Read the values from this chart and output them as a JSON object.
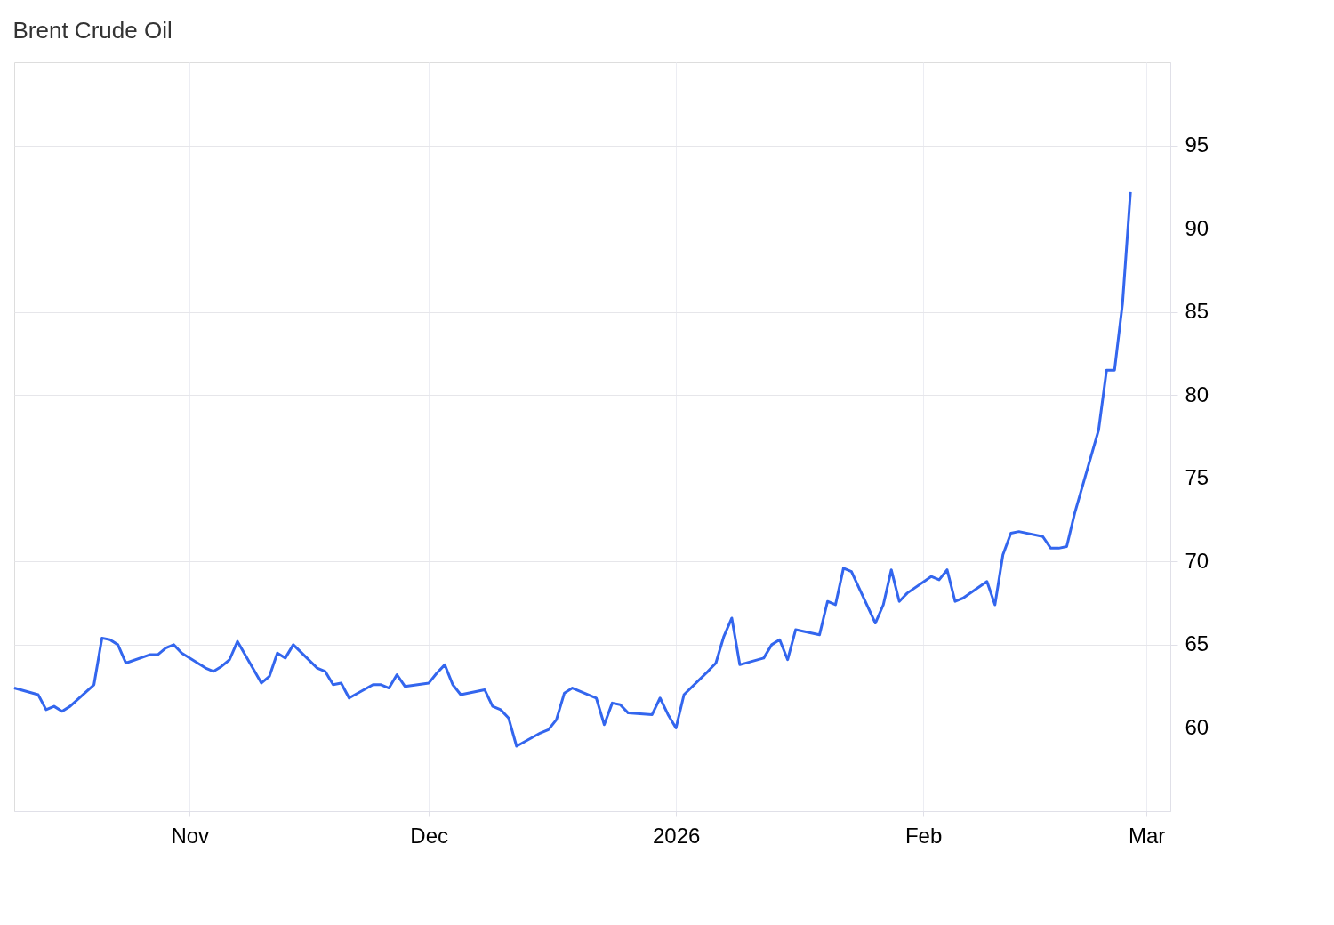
{
  "chart_data": {
    "type": "line",
    "title": "Brent Crude Oil",
    "x": [
      "2025-10-10",
      "2025-10-13",
      "2025-10-14",
      "2025-10-15",
      "2025-10-16",
      "2025-10-17",
      "2025-10-20",
      "2025-10-21",
      "2025-10-22",
      "2025-10-23",
      "2025-10-24",
      "2025-10-27",
      "2025-10-28",
      "2025-10-29",
      "2025-10-30",
      "2025-10-31",
      "2025-11-03",
      "2025-11-04",
      "2025-11-05",
      "2025-11-06",
      "2025-11-07",
      "2025-11-10",
      "2025-11-11",
      "2025-11-12",
      "2025-11-13",
      "2025-11-14",
      "2025-11-17",
      "2025-11-18",
      "2025-11-19",
      "2025-11-20",
      "2025-11-21",
      "2025-11-24",
      "2025-11-25",
      "2025-11-26",
      "2025-11-27",
      "2025-11-28",
      "2025-12-01",
      "2025-12-02",
      "2025-12-03",
      "2025-12-04",
      "2025-12-05",
      "2025-12-08",
      "2025-12-09",
      "2025-12-10",
      "2025-12-11",
      "2025-12-12",
      "2025-12-15",
      "2025-12-16",
      "2025-12-17",
      "2025-12-18",
      "2025-12-19",
      "2025-12-22",
      "2025-12-23",
      "2025-12-24",
      "2025-12-25",
      "2025-12-26",
      "2025-12-29",
      "2025-12-30",
      "2025-12-31",
      "2026-01-01",
      "2026-01-02",
      "2026-01-05",
      "2026-01-06",
      "2026-01-07",
      "2026-01-08",
      "2026-01-09",
      "2026-01-12",
      "2026-01-13",
      "2026-01-14",
      "2026-01-15",
      "2026-01-16",
      "2026-01-19",
      "2026-01-20",
      "2026-01-21",
      "2026-01-22",
      "2026-01-23",
      "2026-01-26",
      "2026-01-27",
      "2026-01-28",
      "2026-01-29",
      "2026-01-30",
      "2026-02-02",
      "2026-02-03",
      "2026-02-04",
      "2026-02-05",
      "2026-02-06",
      "2026-02-09",
      "2026-02-10",
      "2026-02-11",
      "2026-02-12",
      "2026-02-13",
      "2026-02-16",
      "2026-02-17",
      "2026-02-18",
      "2026-02-19",
      "2026-02-20",
      "2026-02-23",
      "2026-02-24",
      "2026-02-25",
      "2026-02-26",
      "2026-02-27"
    ],
    "series": [
      {
        "color": "#3366ee",
        "values": [
          62.4,
          62.0,
          61.1,
          61.3,
          61.0,
          61.3,
          62.6,
          65.4,
          65.3,
          65.0,
          63.9,
          64.4,
          64.4,
          64.8,
          65.0,
          64.5,
          63.6,
          63.4,
          63.7,
          64.1,
          65.2,
          62.7,
          63.1,
          64.5,
          64.2,
          65.0,
          63.6,
          63.4,
          62.6,
          62.7,
          61.8,
          62.6,
          62.6,
          62.4,
          63.2,
          62.5,
          62.7,
          63.3,
          63.8,
          62.6,
          62.0,
          62.3,
          61.3,
          61.1,
          60.6,
          58.9,
          59.7,
          59.9,
          60.5,
          62.1,
          62.4,
          61.8,
          60.2,
          61.5,
          61.4,
          60.9,
          60.8,
          61.8,
          60.8,
          60.0,
          62.0,
          63.4,
          63.9,
          65.5,
          66.6,
          63.8,
          64.2,
          65.0,
          65.3,
          64.1,
          65.9,
          65.6,
          67.6,
          67.4,
          69.6,
          69.4,
          66.3,
          67.4,
          69.5,
          67.6,
          68.1,
          69.1,
          68.9,
          69.5,
          67.6,
          67.8,
          68.8,
          67.4,
          70.4,
          71.7,
          71.8,
          71.5,
          70.8,
          70.8,
          70.9,
          72.9,
          77.9,
          81.5,
          81.5,
          85.5,
          92.2
        ]
      }
    ],
    "xlim": [
      "2025-10-10",
      "2026-03-04"
    ],
    "xticks": [
      {
        "value": "2025-11-01",
        "label": "Nov"
      },
      {
        "value": "2025-12-01",
        "label": "Dec"
      },
      {
        "value": "2026-01-01",
        "label": "2026"
      },
      {
        "value": "2026-02-01",
        "label": "Feb"
      },
      {
        "value": "2026-03-01",
        "label": "Mar"
      }
    ],
    "ylim": [
      55,
      100
    ],
    "yticks": [
      60,
      65,
      70,
      75,
      80,
      85,
      90,
      95
    ],
    "grid": true,
    "line_style": "solid",
    "marker": "none"
  }
}
